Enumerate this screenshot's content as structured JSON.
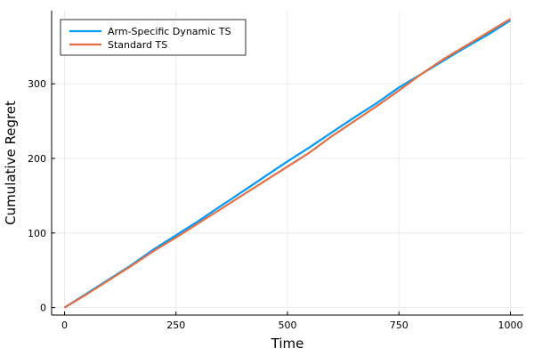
{
  "chart_data": {
    "type": "line",
    "title": "",
    "xlabel": "Time",
    "ylabel": "Cumulative Regret",
    "xlim": [
      -29,
      1029
    ],
    "ylim": [
      -10,
      398
    ],
    "xticks": [
      0,
      250,
      500,
      750,
      1000
    ],
    "yticks": [
      0,
      100,
      200,
      300
    ],
    "xtick_labels": [
      "0",
      "250",
      "500",
      "750",
      "1000"
    ],
    "ytick_labels": [
      "0",
      "100",
      "200",
      "300"
    ],
    "grid": true,
    "legend_position": "top-left",
    "series": [
      {
        "name": "Arm-Specific Dynamic TS",
        "color": "#009af9",
        "x": [
          0,
          50,
          100,
          150,
          200,
          250,
          300,
          350,
          400,
          450,
          500,
          550,
          600,
          650,
          700,
          750,
          800,
          850,
          900,
          950,
          1000
        ],
        "y": [
          0,
          19,
          38,
          57,
          78,
          97,
          116,
          136,
          156,
          176,
          196,
          215,
          235,
          255,
          274,
          295,
          313,
          331,
          349,
          366,
          385
        ]
      },
      {
        "name": "Standard TS",
        "color": "#e26f46",
        "x": [
          0,
          50,
          100,
          150,
          200,
          250,
          300,
          350,
          400,
          450,
          500,
          550,
          600,
          650,
          700,
          750,
          800,
          850,
          900,
          950,
          1000
        ],
        "y": [
          0,
          18,
          37,
          56,
          76,
          94,
          113,
          132,
          151,
          170,
          189,
          208,
          230,
          250,
          270,
          291,
          313,
          333,
          351,
          369,
          387
        ]
      }
    ]
  }
}
